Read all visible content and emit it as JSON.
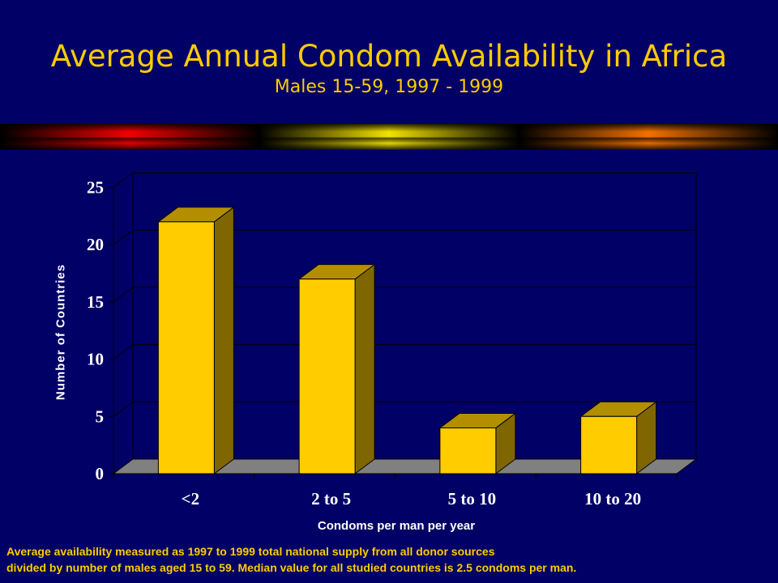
{
  "title": "Average Annual Condom Availability in Africa",
  "subtitle": "Males 15-59, 1997 - 1999",
  "colors": {
    "background": "#000066",
    "title": "#ffcc00",
    "bar_front": "#ffcc00",
    "bar_side": "#806600",
    "bar_top": "#b38f00",
    "floor": "#808080",
    "footnote": "#ffcc00"
  },
  "chart_data": {
    "type": "bar",
    "categories": [
      "<2",
      "2 to 5",
      "5 to 10",
      "10 to 20"
    ],
    "values": [
      22,
      17,
      4,
      5
    ],
    "xlabel": "Condoms per man per year",
    "ylabel": "Number of Countries",
    "ylim": [
      0,
      25
    ],
    "yticks": [
      "0",
      "5",
      "10",
      "15",
      "20",
      "25"
    ],
    "grid": true,
    "style": "3d"
  },
  "footnote": {
    "line1": "Average availability  measured as 1997 to 1999 total national supply from all donor sources",
    "line2": "divided by number of males aged 15 to 59.  Median value for all studied countries is 2.5 condoms per man."
  }
}
